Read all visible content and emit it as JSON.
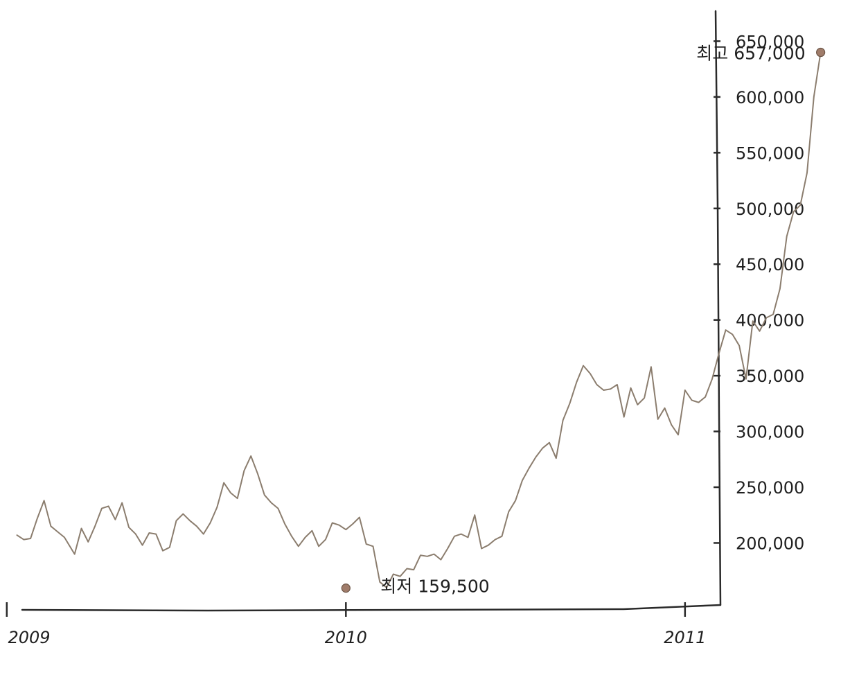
{
  "chart_data": {
    "type": "line",
    "title": "",
    "xlabel": "",
    "ylabel": "",
    "y_axis_side": "right",
    "grid": false,
    "xlim": [
      2008.98,
      2011.46
    ],
    "ylim": [
      140000,
      677000
    ],
    "x_ticks": [
      {
        "value": 2009,
        "label": "2009"
      },
      {
        "value": 2010,
        "label": "2010"
      },
      {
        "value": 2011,
        "label": "2011"
      }
    ],
    "y_ticks": [
      {
        "value": 200000,
        "label": "200,000"
      },
      {
        "value": 250000,
        "label": "250,000"
      },
      {
        "value": 300000,
        "label": "300,000"
      },
      {
        "value": 350000,
        "label": "350,000"
      },
      {
        "value": 400000,
        "label": "400,000"
      },
      {
        "value": 450000,
        "label": "450,000"
      },
      {
        "value": 500000,
        "label": "500,000"
      },
      {
        "value": 550000,
        "label": "550,000"
      },
      {
        "value": 600000,
        "label": "600,000"
      },
      {
        "value": 650000,
        "label": "650,000"
      }
    ],
    "colors": {
      "line": "#8b7d6e",
      "marker": "#a07c6a",
      "marker_edge": "#6b5445",
      "axis": "#2a2a2a"
    },
    "series": [
      {
        "x": [
          2009.03,
          2009.05,
          2009.07,
          2009.09,
          2009.11,
          2009.13,
          2009.15,
          2009.17,
          2009.2,
          2009.22,
          2009.24,
          2009.26,
          2009.28,
          2009.3,
          2009.32,
          2009.34,
          2009.36,
          2009.38,
          2009.4,
          2009.42,
          2009.44,
          2009.46,
          2009.48,
          2009.5,
          2009.52,
          2009.54,
          2009.56,
          2009.58,
          2009.6,
          2009.62,
          2009.64,
          2009.66,
          2009.68,
          2009.7,
          2009.72,
          2009.74,
          2009.76,
          2009.78,
          2009.8,
          2009.82,
          2009.84,
          2009.86,
          2009.88,
          2009.9,
          2009.92,
          2009.94,
          2009.96,
          2009.98,
          2010.0,
          2010.02,
          2010.04,
          2010.06,
          2010.08,
          2010.1,
          2010.12,
          2010.14,
          2010.16,
          2010.18,
          2010.2,
          2010.22,
          2010.24,
          2010.26,
          2010.28,
          2010.3,
          2010.32,
          2010.34,
          2010.36,
          2010.38,
          2010.4,
          2010.42,
          2010.44,
          2010.46,
          2010.48,
          2010.5,
          2010.52,
          2010.54,
          2010.56,
          2010.58,
          2010.6,
          2010.62,
          2010.64,
          2010.66,
          2010.68,
          2010.7,
          2010.72,
          2010.74,
          2010.76,
          2010.78,
          2010.8,
          2010.82,
          2010.84,
          2010.86,
          2010.88,
          2010.9,
          2010.92,
          2010.94,
          2010.96,
          2010.98,
          2011.0,
          2011.02,
          2011.04,
          2011.06,
          2011.08,
          2011.1,
          2011.12,
          2011.14,
          2011.16,
          2011.18,
          2011.2,
          2011.22,
          2011.24,
          2011.26,
          2011.28,
          2011.3,
          2011.32,
          2011.34,
          2011.36,
          2011.38
        ],
        "y": [
          207000,
          203000,
          204000,
          222000,
          238000,
          215000,
          210000,
          205000,
          190000,
          213000,
          201000,
          215000,
          231000,
          233000,
          221000,
          236000,
          214000,
          208000,
          198000,
          209000,
          208000,
          193000,
          196000,
          220000,
          226000,
          220000,
          215000,
          208000,
          218000,
          232000,
          254000,
          245000,
          240000,
          265000,
          278000,
          262000,
          243000,
          236000,
          231000,
          217000,
          206000,
          197000,
          205000,
          211000,
          197000,
          203000,
          218000,
          216000,
          212000,
          217000,
          223000,
          199000,
          197000,
          165000,
          160000,
          172000,
          170000,
          177000,
          176000,
          189000,
          188000,
          190000,
          185000,
          195000,
          206000,
          208000,
          205000,
          225000,
          195000,
          198000,
          203000,
          206000,
          228000,
          238000,
          256000,
          267000,
          277000,
          285000,
          290000,
          276000,
          310000,
          325000,
          344000,
          359000,
          352000,
          342000,
          337000,
          338000,
          342000,
          313000,
          339000,
          324000,
          330000,
          358000,
          311000,
          321000,
          306000,
          297000,
          337000,
          328000,
          326000,
          331000,
          347000,
          370000,
          391000,
          387000,
          377000,
          347000,
          399000,
          390000,
          402000,
          405000,
          428000,
          475000,
          497000,
          503000,
          532000,
          600000
        ],
        "end_point": {
          "x": 2011.4,
          "y": 640000
        }
      }
    ],
    "annotations": [
      {
        "text": "최고 657,000",
        "x": 2011.4,
        "y": 640000,
        "type": "max"
      },
      {
        "text": "최저 159,500",
        "x": 2010.0,
        "y": 159500,
        "type": "min"
      }
    ]
  }
}
